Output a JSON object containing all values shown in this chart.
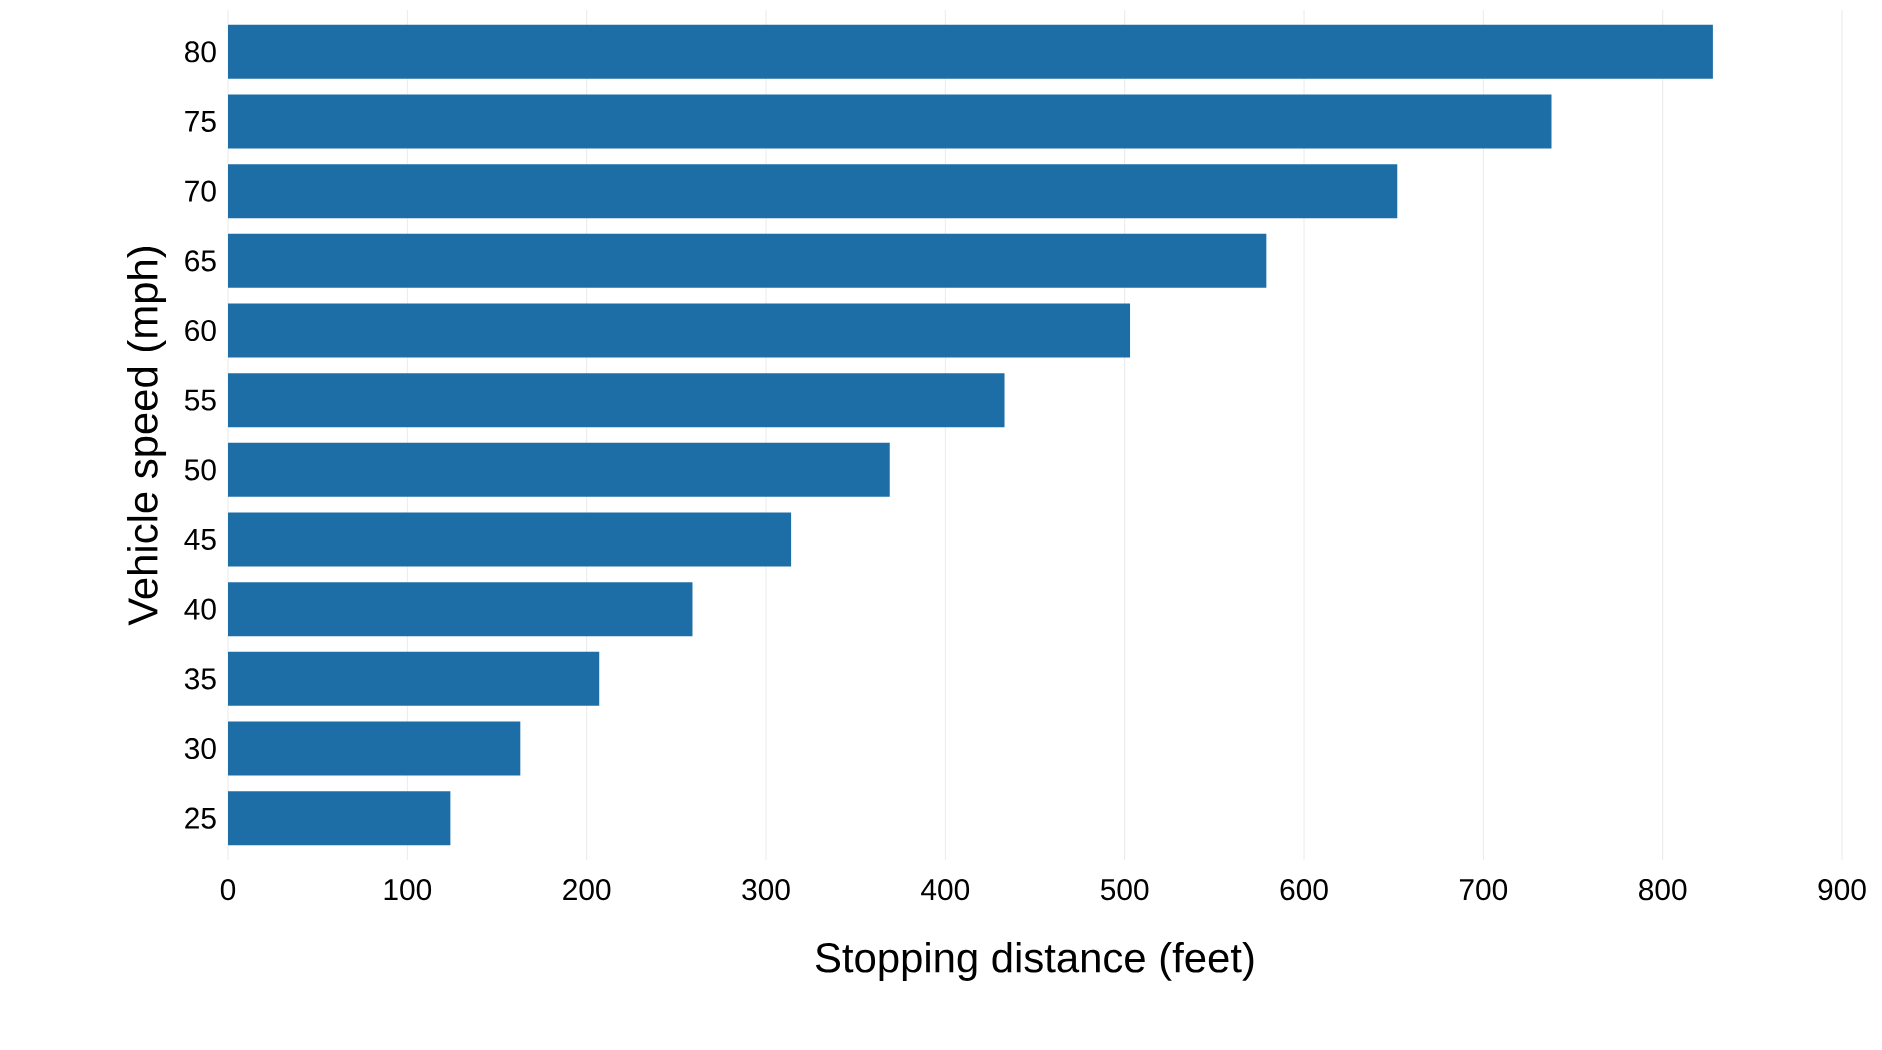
{
  "chart_data": {
    "type": "bar",
    "orientation": "horizontal",
    "xlabel": "Stopping distance (feet)",
    "ylabel": "Vehicle speed (mph)",
    "categories": [
      "80",
      "75",
      "70",
      "65",
      "60",
      "55",
      "50",
      "45",
      "40",
      "35",
      "30",
      "25"
    ],
    "values": [
      828,
      738,
      652,
      579,
      503,
      433,
      369,
      314,
      259,
      207,
      163,
      124
    ],
    "color": "#1d6ea6",
    "xlim": [
      0,
      900
    ],
    "xticks": [
      0,
      100,
      200,
      300,
      400,
      500,
      600,
      700,
      800,
      900
    ],
    "grid": "x"
  }
}
